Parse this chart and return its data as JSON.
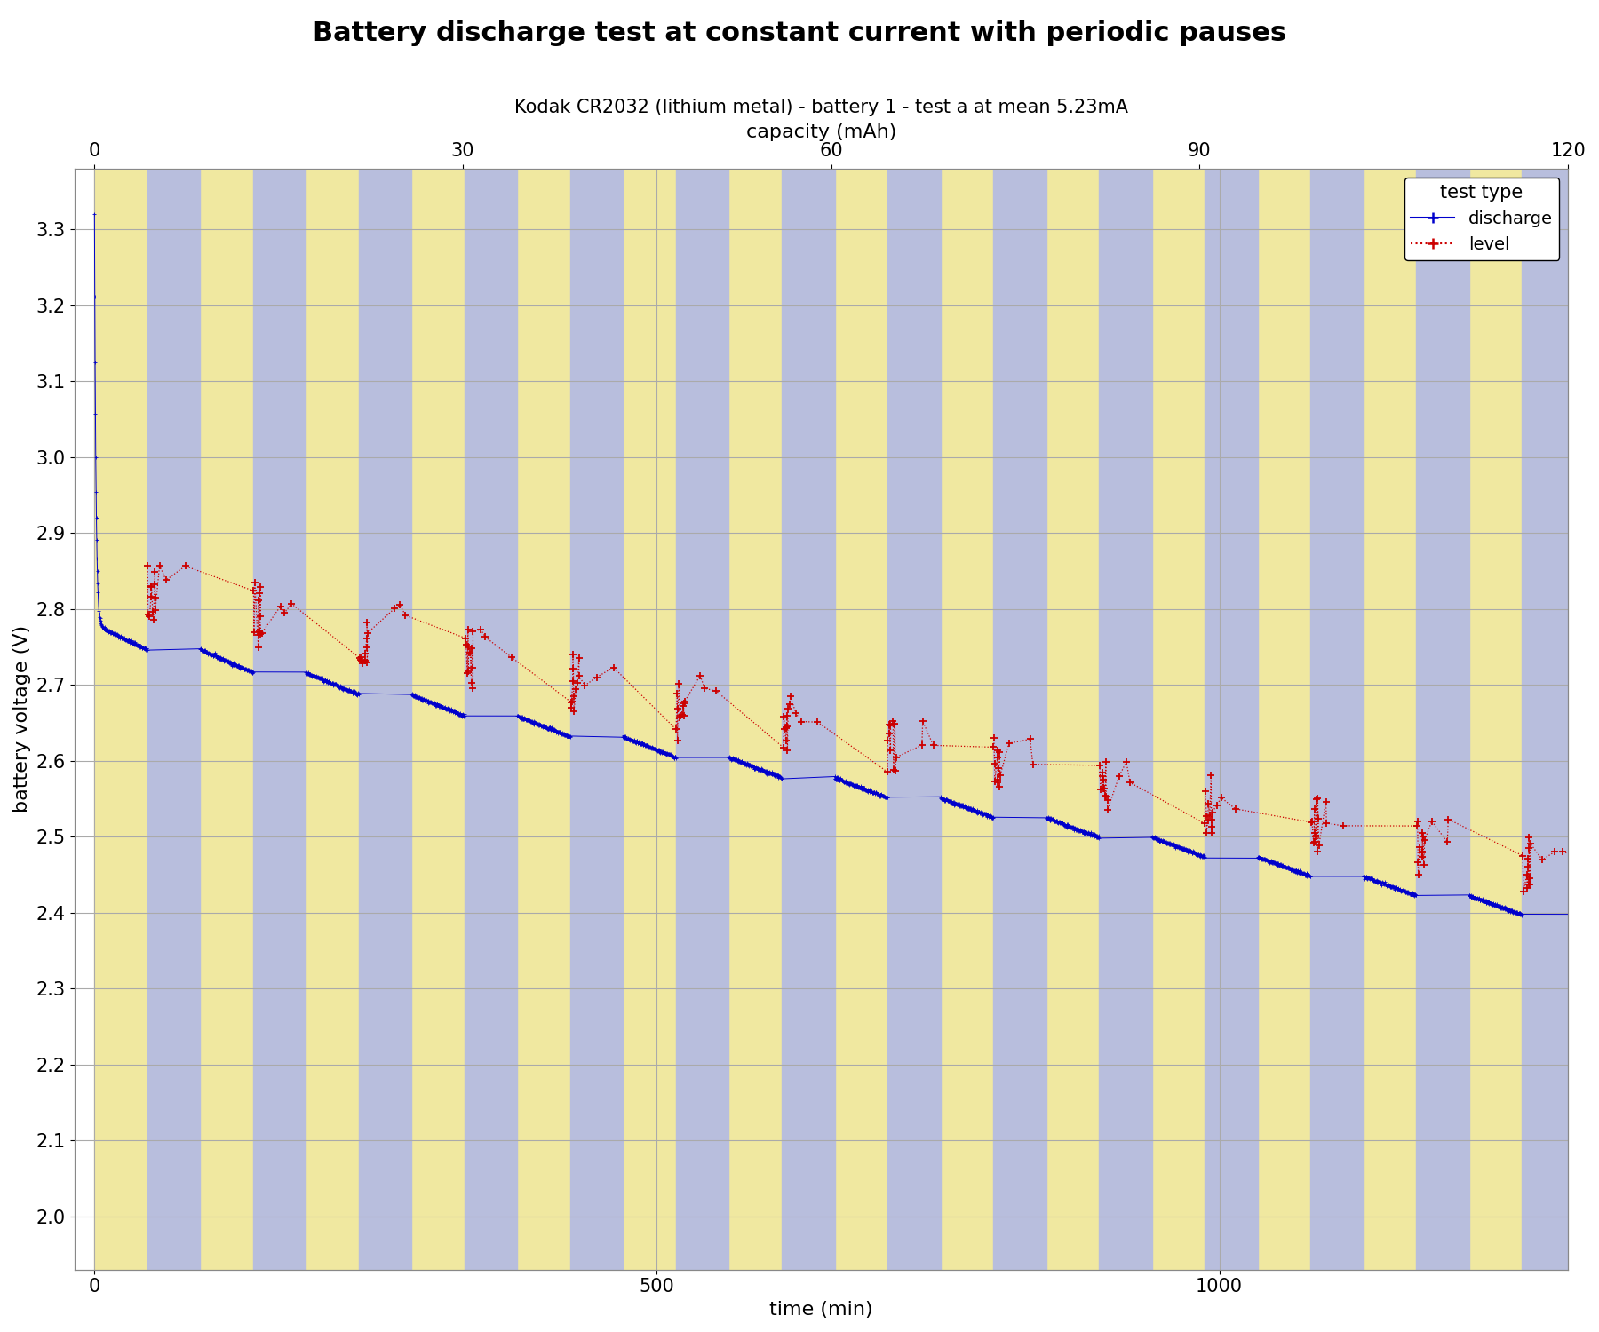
{
  "title": "Battery discharge test at constant current with periodic pauses",
  "subtitle": "Kodak CR2032 (lithium metal) - battery 1 - test a at mean 5.23mA",
  "xlabel": "time (min)",
  "ylabel": "battery voltage (V)",
  "top_xlabel": "capacity (mAh)",
  "xlim": [
    -18,
    1310
  ],
  "ylim": [
    1.93,
    3.38
  ],
  "yticks": [
    2.0,
    2.1,
    2.2,
    2.3,
    2.4,
    2.5,
    2.6,
    2.7,
    2.8,
    2.9,
    3.0,
    3.1,
    3.2,
    3.3
  ],
  "xticks": [
    0,
    500,
    1000
  ],
  "top_xticks": [
    0,
    30,
    60,
    90,
    120
  ],
  "band_color_discharge": "#f0e8a0",
  "band_color_pause": "#b8bedd",
  "discharge_color": "#0000cc",
  "level_color": "#cc0000",
  "title_fontsize": 22,
  "subtitle_fontsize": 15,
  "axis_label_fontsize": 16,
  "tick_fontsize": 15,
  "legend_fontsize": 14,
  "cycle_duration": 47,
  "n_cycles": 27,
  "total_time": 1290
}
